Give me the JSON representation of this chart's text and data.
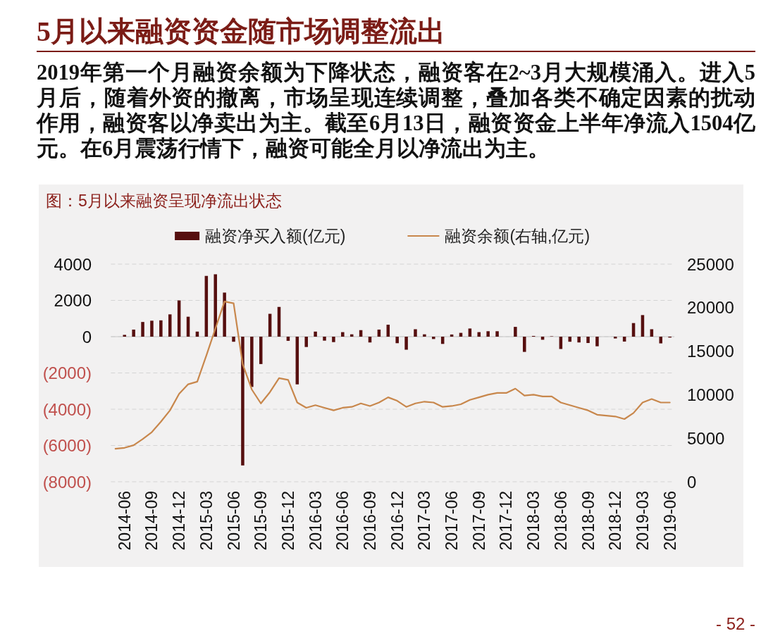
{
  "chart_data": {
    "type": "bar",
    "title": "5月以来融资资金随市场调整流出",
    "subtitle": "2019年第一个月融资余额为下降状态，融资客在2~3月大规模涌入。进入5月后，随着外资的撤离，市场呈现连续调整，叠加各类不确定因素的扰动作用，融资客以净卖出为主。截至6月13日，融资资金上半年净流入1504亿元。在6月震荡行情下，融资可能全月以净流出为主。",
    "annotations": [
      "图：5月以来融资呈现净流出状态",
      "- 52 -"
    ],
    "categories": [
      null,
      "2014-06",
      null,
      null,
      "2014-09",
      null,
      null,
      "2014-12",
      null,
      null,
      "2015-03",
      null,
      null,
      "2015-06",
      null,
      null,
      "2015-09",
      null,
      null,
      "2015-12",
      null,
      null,
      "2016-03",
      null,
      null,
      "2016-06",
      null,
      null,
      "2016-09",
      null,
      null,
      "2016-12",
      null,
      null,
      "2017-03",
      null,
      null,
      "2017-06",
      null,
      null,
      "2017-09",
      null,
      null,
      "2017-12",
      null,
      null,
      "2018-03",
      null,
      null,
      "2018-06",
      null,
      null,
      "2018-09",
      null,
      null,
      "2018-12",
      null,
      null,
      "2019-03",
      null,
      null,
      "2019-06"
    ],
    "series": [
      {
        "name": "融资净买入额(亿元)",
        "color": "#560f0f",
        "values": [
          null,
          100,
          390,
          810,
          880,
          900,
          1230,
          2000,
          1100,
          280,
          3350,
          3440,
          2430,
          -280,
          -7100,
          -2770,
          -1510,
          1260,
          1640,
          -230,
          -2630,
          -570,
          280,
          -220,
          -300,
          250,
          130,
          360,
          -320,
          390,
          660,
          -360,
          -720,
          410,
          130,
          -130,
          -400,
          120,
          210,
          450,
          250,
          300,
          300,
          null,
          540,
          -840,
          40,
          -170,
          20,
          -680,
          -280,
          -320,
          -350,
          -530,
          null,
          -100,
          -270,
          750,
          1190,
          410,
          -370,
          -50
        ]
      },
      {
        "name": "融资余额(右轴,亿元)",
        "type": "line",
        "axis": "y2",
        "color": "#c8874c",
        "values": [
          3800,
          3900,
          4200,
          4900,
          5700,
          6900,
          8200,
          10100,
          11200,
          11500,
          14500,
          17600,
          20700,
          20500,
          13500,
          10600,
          9000,
          10300,
          11900,
          11700,
          9100,
          8500,
          8800,
          8500,
          8200,
          8500,
          8600,
          9000,
          8700,
          9100,
          9700,
          9300,
          8600,
          9000,
          9200,
          9100,
          8600,
          8700,
          8900,
          9400,
          9700,
          10000,
          10200,
          10200,
          10700,
          9900,
          10000,
          9800,
          9800,
          9100,
          8800,
          8500,
          8200,
          7700,
          7600,
          7500,
          7200,
          7900,
          9100,
          9500,
          9100,
          9100
        ]
      }
    ],
    "ylim": [
      -8000,
      4000
    ],
    "yticks": [
      4000,
      2000,
      0,
      {
        "value": -2000,
        "label": "(2000)"
      },
      {
        "value": -4000,
        "label": "(4000)"
      },
      {
        "value": -6000,
        "label": "(6000)"
      },
      {
        "value": -8000,
        "label": "(8000)"
      }
    ],
    "y2lim": [
      0,
      25000
    ],
    "y2ticks": [
      0,
      5000,
      10000,
      15000,
      20000,
      25000
    ],
    "grid": "y",
    "legend": "top"
  }
}
